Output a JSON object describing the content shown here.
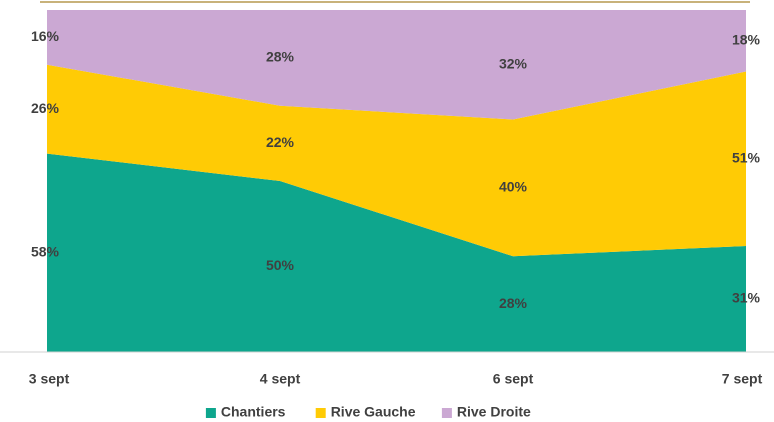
{
  "chart_data": {
    "type": "stacked_area_percent",
    "categories": [
      "3 sept",
      "4 sept",
      "6 sept",
      "7 sept"
    ],
    "ylim": [
      0,
      100
    ],
    "series": [
      {
        "name": "Chantiers",
        "color": "#0ea68d",
        "values": [
          58,
          50,
          28,
          31
        ],
        "value_labels": [
          "58%",
          "50%",
          "28%",
          "31%"
        ]
      },
      {
        "name": "Rive Gauche",
        "color": "#ffcb05",
        "values": [
          26,
          22,
          40,
          51
        ],
        "value_labels": [
          "26%",
          "22%",
          "40%",
          "51%"
        ]
      },
      {
        "name": "Rive Droite",
        "color": "#cba8d3",
        "values": [
          16,
          28,
          32,
          18
        ],
        "value_labels": [
          "16%",
          "28%",
          "32%",
          "18%"
        ]
      }
    ],
    "legend": "bottom"
  }
}
